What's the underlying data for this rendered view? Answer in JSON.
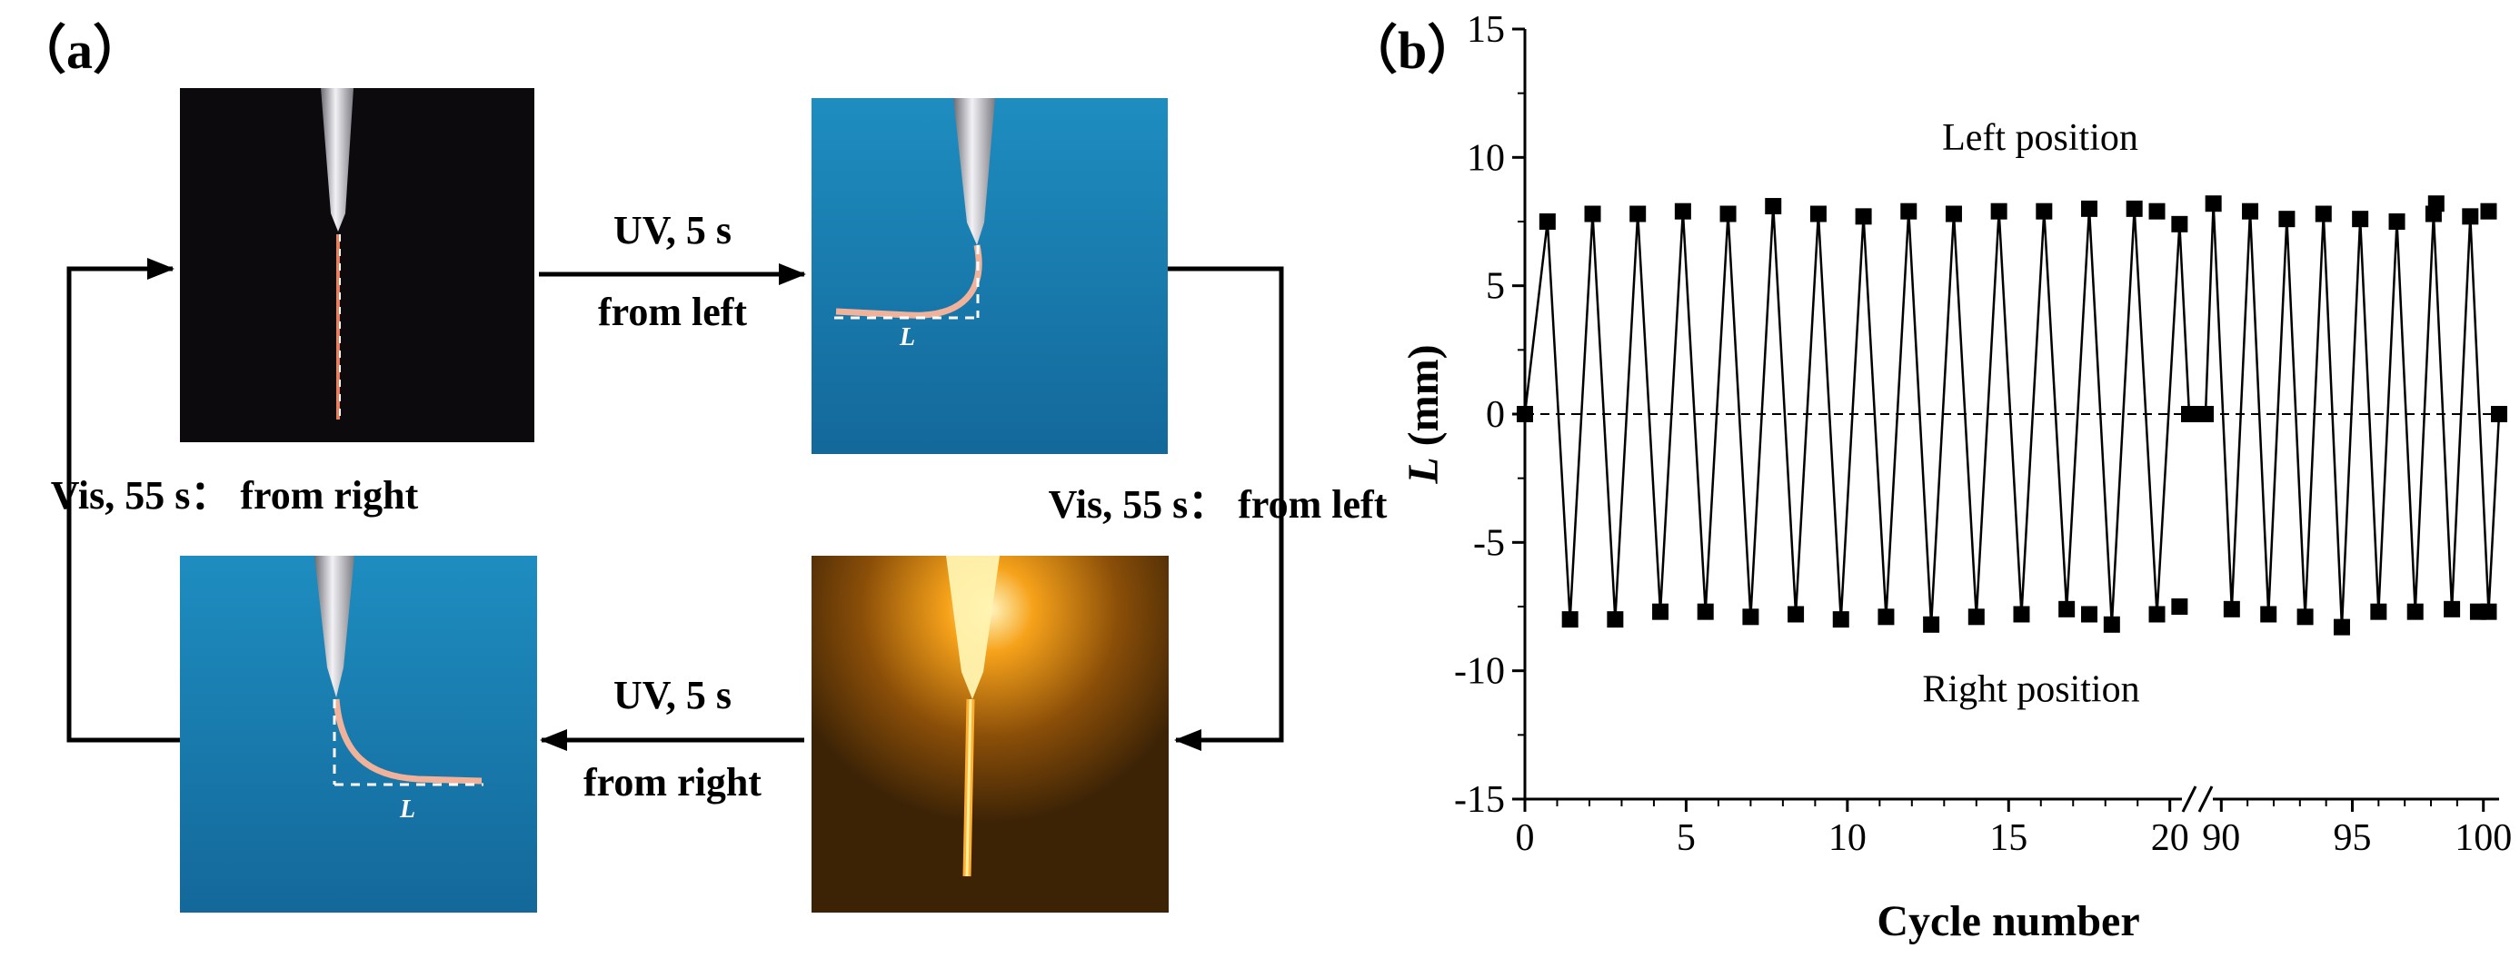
{
  "panel_a": {
    "label": "（a）",
    "arrow_top_line1": "UV, 5 s",
    "arrow_top_line2": "from left",
    "arrow_bottom_line1": "UV, 5 s",
    "arrow_bottom_line2": "from right",
    "left_label": "Vis, 55 s： from right",
    "right_label": "Vis, 55 s： from left",
    "length_symbol": "L",
    "colors": {
      "dark_bg": "#0d0a0d",
      "blue_bg": "#1f87b8",
      "amber_bg": "#4a2a05",
      "fiber": "#f0b29a",
      "glow": "#ffd030"
    }
  },
  "panel_b": {
    "label": "（b）"
  },
  "chart_data": {
    "type": "line",
    "title": "",
    "xlabel": "Cycle number",
    "ylabel_symbol": "L",
    "ylabel_unit": " (mm)",
    "ylim": [
      -15,
      15
    ],
    "yticks": [
      "15",
      "10",
      "5",
      "0",
      "-5",
      "-10",
      "-15"
    ],
    "xticks_left": [
      "0",
      "5",
      "10",
      "15",
      "20"
    ],
    "xticks_right": [
      "90",
      "95",
      "100"
    ],
    "axis_break": {
      "left_segment": [
        0,
        20.6
      ],
      "right_segment": [
        89.4,
        100.6
      ]
    },
    "annotations": {
      "upper": "Left position",
      "lower": "Right position"
    },
    "reference_line_y": 0,
    "marker_color": "#000000",
    "series": [
      {
        "segment": "left",
        "x": [
          0,
          0.7,
          1.4,
          2.1,
          2.8,
          3.5,
          4.2,
          4.9,
          5.6,
          6.3,
          7.0,
          7.7,
          8.4,
          9.1,
          9.8,
          10.5,
          11.2,
          11.9,
          12.6,
          13.3,
          14.0,
          14.7,
          15.4,
          16.1,
          16.8,
          17.5,
          18.2,
          18.9,
          19.6,
          20.3,
          20.6
        ],
        "y": [
          0,
          7.5,
          -8.0,
          7.8,
          -8.0,
          7.8,
          -7.7,
          7.9,
          -7.7,
          7.8,
          -7.9,
          8.1,
          -7.8,
          7.8,
          -8.0,
          7.7,
          -7.9,
          7.9,
          -8.2,
          7.8,
          -7.9,
          7.9,
          -7.8,
          7.9,
          -7.6,
          8.0,
          -8.2,
          8.0,
          -7.8,
          7.4,
          0
        ]
      },
      {
        "segment": "right",
        "x": [
          89.4,
          89.7,
          90.4,
          91.1,
          91.8,
          92.5,
          93.2,
          93.9,
          94.6,
          95.3,
          96.0,
          96.7,
          97.4,
          98.1,
          98.8,
          99.5,
          100.2,
          100.6
        ],
        "y": [
          0,
          8.2,
          -7.6,
          7.9,
          -7.8,
          7.6,
          -7.9,
          7.8,
          -8.3,
          7.6,
          -7.7,
          7.5,
          -7.7,
          7.8,
          -7.6,
          7.7,
          -7.7,
          0
        ]
      }
    ],
    "extra_markers": [
      {
        "segment": "left",
        "x": 20.3,
        "y": -7.5
      },
      {
        "segment": "left",
        "x": 19.6,
        "y": 7.9
      },
      {
        "segment": "left",
        "x": 17.5,
        "y": -7.8
      },
      {
        "segment": "right",
        "x": 99.8,
        "y": -7.7
      },
      {
        "segment": "right",
        "x": 100.2,
        "y": 7.9
      },
      {
        "segment": "right",
        "x": 98.2,
        "y": 8.2
      }
    ]
  }
}
